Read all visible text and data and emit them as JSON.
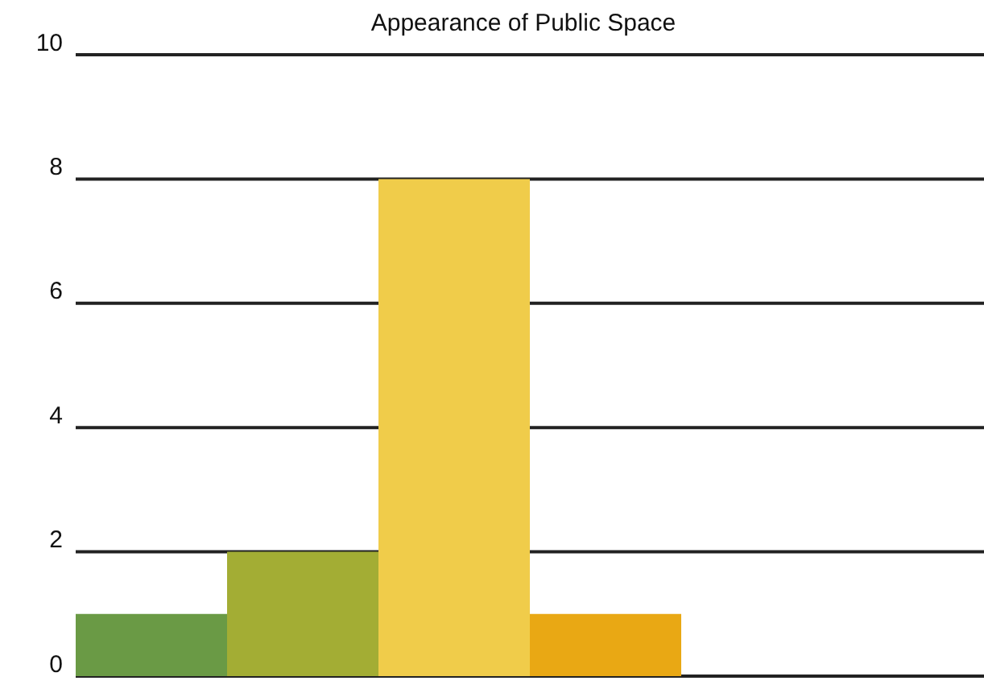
{
  "chart_data": {
    "type": "bar",
    "title": "Appearance of Public Space",
    "categories": [
      null,
      null,
      null,
      null,
      null,
      null
    ],
    "values": [
      1,
      2,
      8,
      1,
      null,
      null
    ],
    "colors": [
      "#6a9a45",
      "#a3ad34",
      "#f0cc4a",
      "#e9a814",
      "#e9a814",
      "#e9a814"
    ],
    "ylim": [
      0,
      10
    ],
    "yticks": [
      0,
      2,
      4,
      6,
      8,
      10
    ],
    "grid": "y",
    "tick_labels": "y"
  }
}
